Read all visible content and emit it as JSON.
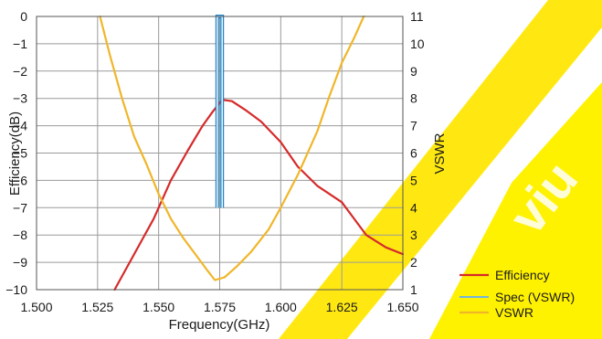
{
  "chart_data": {
    "type": "line",
    "xlabel": "Frequency(GHz)",
    "ylabel": "Efficiency(dB)",
    "y2label": "VSWR",
    "xlim": [
      1.5,
      1.65
    ],
    "ylim": [
      -10,
      0
    ],
    "y2lim": [
      1,
      11
    ],
    "x_ticks": [
      "1.500",
      "1.525",
      "1.550",
      "1.575",
      "1.600",
      "1.625",
      "1.650"
    ],
    "y_ticks": [
      "0",
      "−1",
      "−2",
      "−3",
      "−4",
      "−5",
      "−6",
      "−7",
      "−8",
      "−9",
      "−10"
    ],
    "y2_ticks": [
      "11",
      "10",
      "9",
      "8",
      "7",
      "6",
      "5",
      "4",
      "3",
      "2",
      "1"
    ],
    "grid": true,
    "legend_position": "bottom-right",
    "series": [
      {
        "name": "Efficiency",
        "axis": "left",
        "color": "#d62a2a",
        "x": [
          1.532,
          1.54,
          1.548,
          1.555,
          1.562,
          1.568,
          1.572,
          1.576,
          1.58,
          1.586,
          1.592,
          1.6,
          1.607,
          1.615,
          1.625,
          1.635,
          1.643,
          1.65
        ],
        "y": [
          -10.0,
          -8.7,
          -7.4,
          -6.0,
          -4.9,
          -4.0,
          -3.5,
          -3.05,
          -3.1,
          -3.45,
          -3.85,
          -4.6,
          -5.5,
          -6.2,
          -6.8,
          -8.0,
          -8.45,
          -8.7
        ]
      },
      {
        "name": "Spec (VSWR)",
        "axis": "right",
        "color": "#1f86c7",
        "x": [
          1.574,
          1.574,
          1.576,
          1.576
        ],
        "y": [
          4,
          11,
          11,
          4
        ]
      },
      {
        "name": "VSWR",
        "axis": "right",
        "color": "#f0b62a",
        "x": [
          1.526,
          1.53,
          1.535,
          1.54,
          1.545,
          1.55,
          1.555,
          1.56,
          1.565,
          1.57,
          1.573,
          1.577,
          1.582,
          1.588,
          1.595,
          1.6,
          1.607,
          1.615,
          1.62,
          1.625,
          1.63,
          1.634
        ],
        "y": [
          11.0,
          9.6,
          8.0,
          6.6,
          5.6,
          4.5,
          3.6,
          2.9,
          2.3,
          1.7,
          1.35,
          1.45,
          1.85,
          2.4,
          3.2,
          4.0,
          5.2,
          6.8,
          8.1,
          9.3,
          10.2,
          11.0
        ]
      }
    ]
  },
  "legend": {
    "items": [
      "Efficiency",
      "Spec (VSWR)",
      "VSWR"
    ]
  }
}
